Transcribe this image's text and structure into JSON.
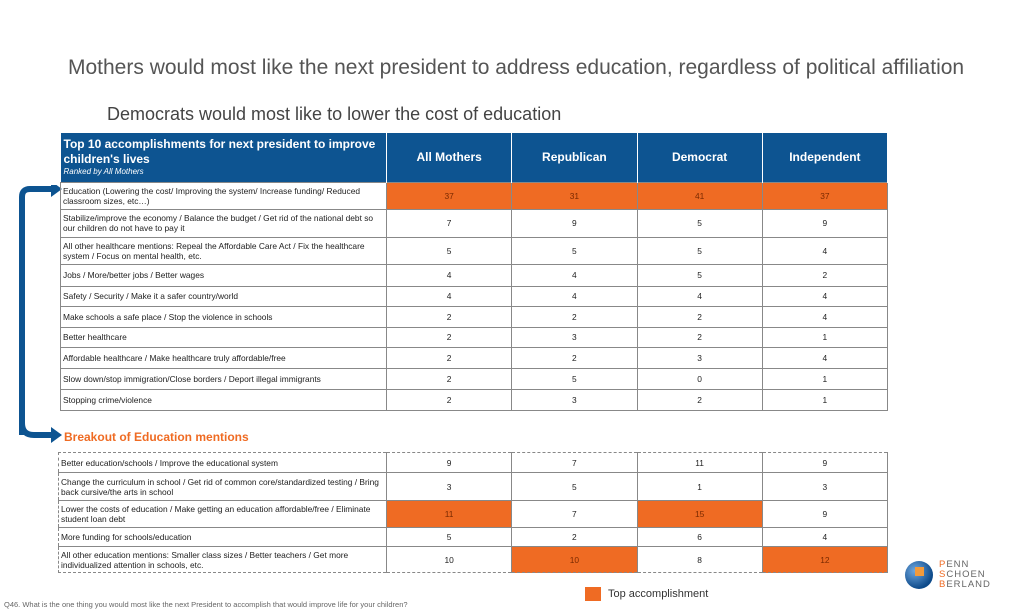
{
  "title": "Mothers would most like the next president to address education, regardless of political affiliation",
  "subtitle": "Democrats would most like to lower the cost of education",
  "colors": {
    "header": "#0d5491",
    "highlight": "#ef6b23"
  },
  "chart_data": {
    "type": "table",
    "header": {
      "label": "Top 10 accomplishments for next president to improve children's lives",
      "ranked": "Ranked by All Mothers",
      "columns": [
        "All Mothers",
        "Republican",
        "Democrat",
        "Independent"
      ]
    },
    "rows": [
      {
        "label": "Education (Lowering the cost/ Improving the system/ Increase funding/ Reduced classroom sizes, etc…)",
        "values": [
          "37",
          "31",
          "41",
          "37"
        ],
        "highlight": [
          true,
          true,
          true,
          true
        ]
      },
      {
        "label": "Stabilize/improve the economy / Balance the budget / Get rid of the national debt so our children do not have to pay it",
        "values": [
          "7",
          "9",
          "5",
          "9"
        ],
        "highlight": [
          false,
          false,
          false,
          false
        ]
      },
      {
        "label": "All other healthcare mentions: Repeal the Affordable Care Act / Fix the healthcare system / Focus on mental health, etc.",
        "values": [
          "5",
          "5",
          "5",
          "4"
        ],
        "highlight": [
          false,
          false,
          false,
          false
        ]
      },
      {
        "label": "Jobs / More/better jobs / Better wages",
        "values": [
          "4",
          "4",
          "5",
          "2"
        ],
        "highlight": [
          false,
          false,
          false,
          false
        ]
      },
      {
        "label": "Safety / Security / Make it a safer country/world",
        "values": [
          "4",
          "4",
          "4",
          "4"
        ],
        "highlight": [
          false,
          false,
          false,
          false
        ]
      },
      {
        "label": "Make schools a safe place / Stop the violence in schools",
        "values": [
          "2",
          "2",
          "2",
          "4"
        ],
        "highlight": [
          false,
          false,
          false,
          false
        ]
      },
      {
        "label": "Better healthcare",
        "values": [
          "2",
          "3",
          "2",
          "1"
        ],
        "highlight": [
          false,
          false,
          false,
          false
        ]
      },
      {
        "label": "Affordable healthcare / Make healthcare truly affordable/free",
        "values": [
          "2",
          "2",
          "3",
          "4"
        ],
        "highlight": [
          false,
          false,
          false,
          false
        ]
      },
      {
        "label": "Slow down/stop immigration/Close borders / Deport illegal immigrants",
        "values": [
          "2",
          "5",
          "0",
          "1"
        ],
        "highlight": [
          false,
          false,
          false,
          false
        ]
      },
      {
        "label": "Stopping crime/violence",
        "values": [
          "2",
          "3",
          "2",
          "1"
        ],
        "highlight": [
          false,
          false,
          false,
          false
        ]
      }
    ],
    "breakout": {
      "title": "Breakout of Education mentions",
      "rows": [
        {
          "label": "Better education/schools / Improve the educational system",
          "values": [
            "9",
            "7",
            "11",
            "9"
          ],
          "highlight": [
            false,
            false,
            false,
            false
          ]
        },
        {
          "label": "Change the curriculum in school / Get rid of common core/standardized testing / Bring back cursive/the arts in school",
          "values": [
            "3",
            "5",
            "1",
            "3"
          ],
          "highlight": [
            false,
            false,
            false,
            false
          ]
        },
        {
          "label": "Lower the costs of education / Make getting an education affordable/free / Eliminate student loan debt",
          "values": [
            "11",
            "7",
            "15",
            "9"
          ],
          "highlight": [
            true,
            false,
            true,
            false
          ]
        },
        {
          "label": "More funding for schools/education",
          "values": [
            "5",
            "2",
            "6",
            "4"
          ],
          "highlight": [
            false,
            false,
            false,
            false
          ]
        },
        {
          "label": "All other education mentions: Smaller class sizes / Better teachers / Get more individualized attention in schools, etc.",
          "values": [
            "10",
            "10",
            "8",
            "12"
          ],
          "highlight": [
            false,
            true,
            false,
            true
          ]
        }
      ]
    }
  },
  "legend": "Top accomplishment",
  "footnote": "Q46. What is the one thing you would most like the next President to accomplish that would improve life for your children?",
  "logo": [
    "PENN",
    "SCHOEN",
    "BERLAND"
  ]
}
